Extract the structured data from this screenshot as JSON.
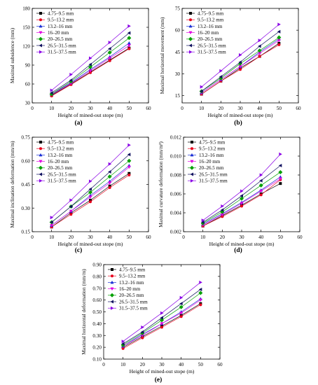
{
  "legend_labels": [
    "4.75–9.5 mm",
    "9.5–13.2 mm",
    "13.2–16 mm",
    "16–20 mm",
    "20–26.5 mm",
    "26.5–31.5 mm",
    "31.5–37.5 mm"
  ],
  "series_colors": [
    "#000000",
    "#e8001c",
    "#1a2fd6",
    "#e000e0",
    "#00a000",
    "#101060",
    "#8a00e6"
  ],
  "markers": [
    "square",
    "circle",
    "triangle-up",
    "triangle-down",
    "diamond",
    "triangle-left",
    "triangle-right"
  ],
  "chart_data": [
    {
      "id": "a",
      "type": "line",
      "panel_label": "(a)",
      "xlabel": "Height of mined-out stope (m)",
      "ylabel": "Maximal subsidence (mm)",
      "xlim": [
        0,
        60
      ],
      "ylim": [
        30,
        180
      ],
      "xticks": [
        0,
        10,
        20,
        30,
        40,
        50,
        60
      ],
      "yticks": [
        30,
        60,
        90,
        120,
        150,
        180
      ],
      "x": [
        10,
        20,
        30,
        40,
        50
      ],
      "legend": "top-left",
      "grid": false,
      "series": [
        {
          "name": "4.75–9.5 mm",
          "values": [
            42,
            60,
            79,
            98,
            117
          ]
        },
        {
          "name": "9.5–13.2 mm",
          "values": [
            41,
            59,
            78,
            97,
            116
          ]
        },
        {
          "name": "13.2–16 mm",
          "values": [
            44,
            62,
            83,
            103,
            125
          ]
        },
        {
          "name": "16–20 mm",
          "values": [
            43,
            61,
            81,
            101,
            121
          ]
        },
        {
          "name": "20–26.5 mm",
          "values": [
            44,
            64,
            87,
            110,
            133
          ]
        },
        {
          "name": "26.5–31.5 mm",
          "values": [
            46,
            66,
            91,
            116,
            141
          ]
        },
        {
          "name": "31.5–37.5 mm",
          "values": [
            50,
            75,
            101,
            126,
            152
          ]
        }
      ]
    },
    {
      "id": "b",
      "type": "line",
      "panel_label": "(b)",
      "xlabel": "Height of mined-out stope (m)",
      "ylabel": "Maximal horizontal movement (mm)",
      "xlim": [
        0,
        60
      ],
      "ylim": [
        10,
        75
      ],
      "xticks": [
        0,
        10,
        20,
        30,
        40,
        50,
        60
      ],
      "yticks": [
        15,
        30,
        45,
        60,
        75
      ],
      "x": [
        10,
        20,
        30,
        40,
        50
      ],
      "legend": "top-left",
      "grid": false,
      "series": [
        {
          "name": "4.75–9.5 mm",
          "values": [
            16,
            25,
            34,
            42,
            51
          ]
        },
        {
          "name": "9.5–13.2 mm",
          "values": [
            16,
            25,
            33,
            42,
            50
          ]
        },
        {
          "name": "13.2–16 mm",
          "values": [
            17,
            26,
            35,
            45,
            54
          ]
        },
        {
          "name": "16–20 mm",
          "values": [
            17,
            26,
            35,
            44,
            53
          ]
        },
        {
          "name": "20–26.5 mm",
          "values": [
            18,
            27,
            37,
            46,
            55
          ]
        },
        {
          "name": "26.5–31.5 mm",
          "values": [
            18,
            28,
            38,
            49,
            59
          ]
        },
        {
          "name": "31.5–37.5 mm",
          "values": [
            21,
            32,
            43,
            53,
            64
          ]
        }
      ]
    },
    {
      "id": "c",
      "type": "line",
      "panel_label": "(c)",
      "xlabel": "Height of mined-out stope (m)",
      "ylabel": "Maximal inclination deformation (mm/m)",
      "xlim": [
        0,
        60
      ],
      "ylim": [
        0.15,
        0.75
      ],
      "xticks": [
        0,
        10,
        20,
        30,
        40,
        50,
        60
      ],
      "yticks": [
        0.15,
        0.3,
        0.45,
        0.6,
        0.75
      ],
      "x": [
        10,
        20,
        30,
        40,
        50
      ],
      "legend": "top-left",
      "grid": false,
      "series": [
        {
          "name": "4.75–9.5 mm",
          "values": [
            0.18,
            0.27,
            0.35,
            0.44,
            0.52
          ]
        },
        {
          "name": "9.5–13.2 mm",
          "values": [
            0.18,
            0.26,
            0.34,
            0.43,
            0.51
          ]
        },
        {
          "name": "13.2–16 mm",
          "values": [
            0.19,
            0.28,
            0.38,
            0.47,
            0.57
          ]
        },
        {
          "name": "16–20 mm",
          "values": [
            0.19,
            0.28,
            0.37,
            0.46,
            0.56
          ]
        },
        {
          "name": "20–26.5 mm",
          "values": [
            0.21,
            0.31,
            0.4,
            0.5,
            0.6
          ]
        },
        {
          "name": "26.5–31.5 mm",
          "values": [
            0.21,
            0.31,
            0.42,
            0.53,
            0.64
          ]
        },
        {
          "name": "31.5–37.5 mm",
          "values": [
            0.24,
            0.35,
            0.47,
            0.58,
            0.7
          ]
        }
      ]
    },
    {
      "id": "d",
      "type": "line",
      "panel_label": "(d)",
      "xlabel": "Height of mined-out stope (m)",
      "ylabel": "Maximal curvature deformation (mm/m²)",
      "xlim": [
        0,
        60
      ],
      "ylim": [
        0.002,
        0.012
      ],
      "xticks": [
        0,
        10,
        20,
        30,
        40,
        50,
        60
      ],
      "yticks": [
        0.002,
        0.004,
        0.006,
        0.008,
        0.01,
        0.012
      ],
      "x": [
        10,
        20,
        30,
        40,
        50
      ],
      "legend": "top-left",
      "grid": false,
      "series": [
        {
          "name": "4.75–9.5 mm",
          "values": [
            0.0026,
            0.0037,
            0.0048,
            0.006,
            0.0071
          ]
        },
        {
          "name": "9.5–13.2 mm",
          "values": [
            0.0026,
            0.0036,
            0.0047,
            0.0059,
            0.0075
          ]
        },
        {
          "name": "13.2–16 mm",
          "values": [
            0.0028,
            0.0039,
            0.0051,
            0.0064,
            0.0078
          ]
        },
        {
          "name": "16–20 mm",
          "values": [
            0.0027,
            0.0038,
            0.005,
            0.0063,
            0.0076
          ]
        },
        {
          "name": "20–26.5 mm",
          "values": [
            0.0029,
            0.0041,
            0.0055,
            0.0069,
            0.0083
          ]
        },
        {
          "name": "26.5–31.5 mm",
          "values": [
            0.003,
            0.0043,
            0.0058,
            0.0074,
            0.009
          ]
        },
        {
          "name": "31.5–37.5 mm",
          "values": [
            0.0032,
            0.0047,
            0.0063,
            0.008,
            0.0102
          ]
        }
      ]
    },
    {
      "id": "e",
      "type": "line",
      "panel_label": "(e)",
      "xlabel": "Height of mined-out stope (m)",
      "ylabel": "Maximal horizontal deformation (mm/m)",
      "xlim": [
        0,
        60
      ],
      "ylim": [
        0.1,
        0.9
      ],
      "xticks": [
        0,
        10,
        20,
        30,
        40,
        50,
        60
      ],
      "yticks": [
        0.1,
        0.2,
        0.3,
        0.4,
        0.5,
        0.6,
        0.7,
        0.8,
        0.9
      ],
      "x": [
        10,
        20,
        30,
        40,
        50
      ],
      "legend": "top-left",
      "grid": false,
      "series": [
        {
          "name": "4.75–9.5 mm",
          "values": [
            0.2,
            0.29,
            0.38,
            0.47,
            0.57
          ]
        },
        {
          "name": "9.5–13.2 mm",
          "values": [
            0.19,
            0.28,
            0.37,
            0.46,
            0.56
          ]
        },
        {
          "name": "13.2–16 mm",
          "values": [
            0.21,
            0.31,
            0.4,
            0.5,
            0.61
          ]
        },
        {
          "name": "16–20 mm",
          "values": [
            0.21,
            0.3,
            0.4,
            0.49,
            0.6
          ]
        },
        {
          "name": "20–26.5 mm",
          "values": [
            0.22,
            0.32,
            0.43,
            0.54,
            0.66
          ]
        },
        {
          "name": "26.5–31.5 mm",
          "values": [
            0.23,
            0.33,
            0.45,
            0.57,
            0.69
          ]
        },
        {
          "name": "31.5–37.5 mm",
          "values": [
            0.25,
            0.37,
            0.49,
            0.62,
            0.75
          ]
        }
      ]
    }
  ]
}
